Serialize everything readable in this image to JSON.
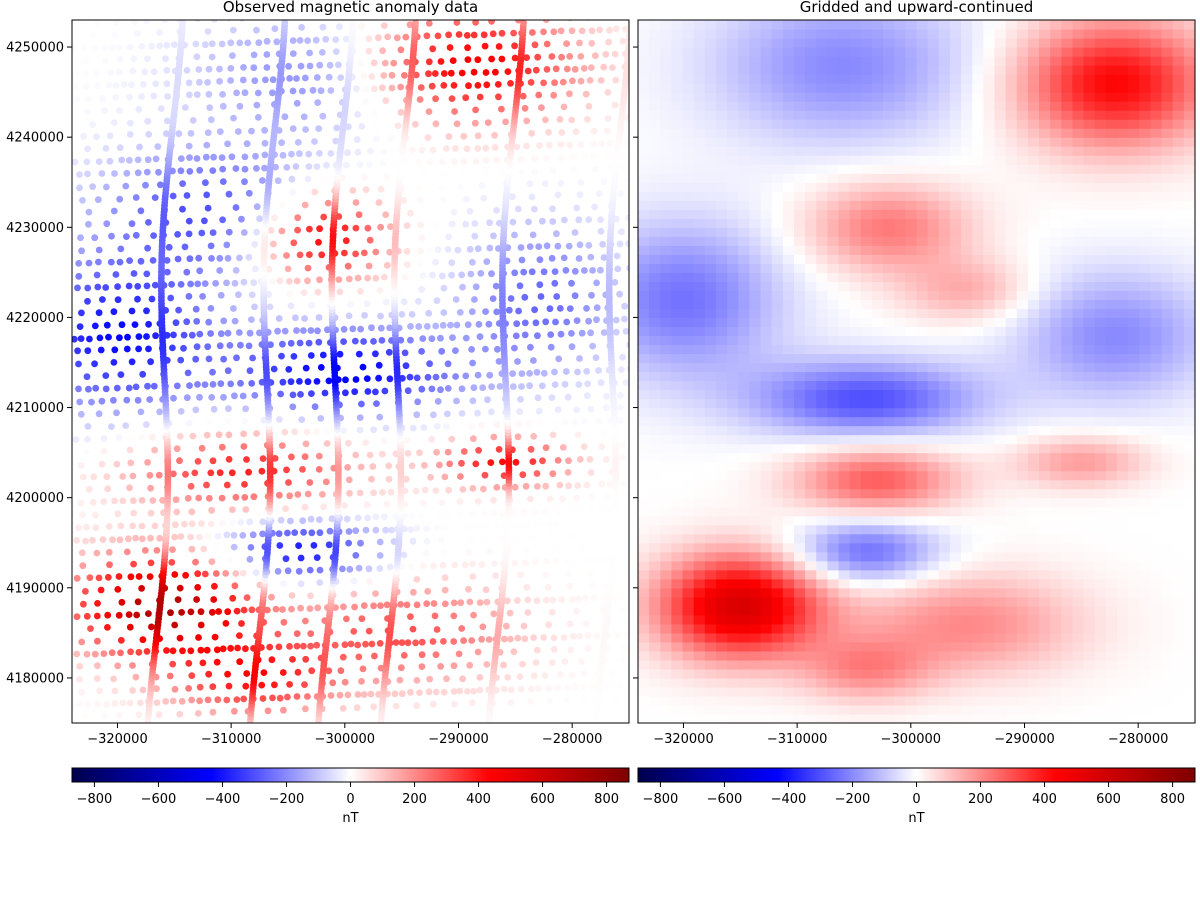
{
  "chart_data": [
    {
      "type": "scatter",
      "title": "Observed magnetic anomaly data",
      "xlabel": "",
      "ylabel": "",
      "xlim": [
        -324000,
        -275000
      ],
      "ylim": [
        4175000,
        4253000
      ],
      "x_ticks": [
        -320000,
        -310000,
        -300000,
        -290000,
        -280000
      ],
      "x_tick_labels": [
        "−320000",
        "−310000",
        "−300000",
        "−290000",
        "−280000"
      ],
      "y_ticks": [
        4180000,
        4190000,
        4200000,
        4210000,
        4220000,
        4230000,
        4240000,
        4250000
      ],
      "y_tick_labels": [
        "4180000",
        "4190000",
        "4200000",
        "4210000",
        "4220000",
        "4230000",
        "4240000",
        "4250000"
      ],
      "colormap": "seismic",
      "clim": [
        -870,
        870
      ],
      "grid": false,
      "flight_lines": {
        "east_west_spacing": 1400,
        "north_south_x": [
          -316800,
          -307800,
          -301800,
          -296300,
          -286800,
          -277400
        ]
      },
      "anomalies": [
        {
          "x": -303500,
          "y": 4247000,
          "sigma_x": 7000,
          "sigma_y": 5000,
          "value": -200
        },
        {
          "x": -289000,
          "y": 4248000,
          "sigma_x": 6500,
          "sigma_y": 4500,
          "value": 480
        },
        {
          "x": -312000,
          "y": 4232000,
          "sigma_x": 7000,
          "sigma_y": 5000,
          "value": -300
        },
        {
          "x": -302000,
          "y": 4229000,
          "sigma_x": 4000,
          "sigma_y": 3500,
          "value": 500
        },
        {
          "x": -320000,
          "y": 4218000,
          "sigma_x": 6000,
          "sigma_y": 6000,
          "value": -420
        },
        {
          "x": -300000,
          "y": 4214000,
          "sigma_x": 7000,
          "sigma_y": 3500,
          "value": -450
        },
        {
          "x": -283000,
          "y": 4222000,
          "sigma_x": 5000,
          "sigma_y": 6000,
          "value": -260
        },
        {
          "x": -309000,
          "y": 4203000,
          "sigma_x": 7000,
          "sigma_y": 3000,
          "value": 380
        },
        {
          "x": -286000,
          "y": 4204000,
          "sigma_x": 4000,
          "sigma_y": 2000,
          "value": 420
        },
        {
          "x": -304000,
          "y": 4194000,
          "sigma_x": 5000,
          "sigma_y": 2500,
          "value": -420
        },
        {
          "x": -316000,
          "y": 4188000,
          "sigma_x": 5500,
          "sigma_y": 4000,
          "value": 700
        },
        {
          "x": -295000,
          "y": 4185000,
          "sigma_x": 7000,
          "sigma_y": 4000,
          "value": 300
        },
        {
          "x": -308000,
          "y": 4180000,
          "sigma_x": 5000,
          "sigma_y": 3000,
          "value": 380
        }
      ]
    },
    {
      "type": "heatmap",
      "title": "Gridded and upward-continued",
      "xlabel": "",
      "ylabel": "",
      "xlim": [
        -324000,
        -275000
      ],
      "ylim": [
        4175000,
        4253000
      ],
      "x_ticks": [
        -320000,
        -310000,
        -300000,
        -290000,
        -280000
      ],
      "x_tick_labels": [
        "−320000",
        "−310000",
        "−300000",
        "−290000",
        "−280000"
      ],
      "colormap": "seismic",
      "clim": [
        -870,
        870
      ],
      "grid_cells": [
        50,
        78
      ],
      "anomalies": [
        {
          "x": -306000,
          "y": 4248000,
          "sigma_x": 8000,
          "sigma_y": 6000,
          "value": -200
        },
        {
          "x": -282000,
          "y": 4246000,
          "sigma_x": 6000,
          "sigma_y": 5000,
          "value": 430
        },
        {
          "x": -302000,
          "y": 4230000,
          "sigma_x": 5000,
          "sigma_y": 3500,
          "value": 230
        },
        {
          "x": -295000,
          "y": 4223000,
          "sigma_x": 4000,
          "sigma_y": 2500,
          "value": 140
        },
        {
          "x": -320000,
          "y": 4222000,
          "sigma_x": 6000,
          "sigma_y": 6000,
          "value": -240
        },
        {
          "x": -304000,
          "y": 4211000,
          "sigma_x": 7000,
          "sigma_y": 3000,
          "value": -300
        },
        {
          "x": -282000,
          "y": 4218000,
          "sigma_x": 6000,
          "sigma_y": 5000,
          "value": -200
        },
        {
          "x": -303000,
          "y": 4202000,
          "sigma_x": 5000,
          "sigma_y": 2600,
          "value": 280
        },
        {
          "x": -285000,
          "y": 4204000,
          "sigma_x": 4000,
          "sigma_y": 2000,
          "value": 170
        },
        {
          "x": -304000,
          "y": 4194000,
          "sigma_x": 4500,
          "sigma_y": 2500,
          "value": -260
        },
        {
          "x": -315000,
          "y": 4188000,
          "sigma_x": 5000,
          "sigma_y": 4000,
          "value": 560
        },
        {
          "x": -295000,
          "y": 4186000,
          "sigma_x": 7000,
          "sigma_y": 4000,
          "value": 200
        },
        {
          "x": -304000,
          "y": 4181000,
          "sigma_x": 4000,
          "sigma_y": 2500,
          "value": 180
        }
      ]
    }
  ],
  "colorbars": [
    {
      "label": "nT",
      "range": [
        -870,
        870
      ],
      "ticks": [
        -800,
        -600,
        -400,
        -200,
        0,
        200,
        400,
        600,
        800
      ],
      "tick_labels": [
        "−800",
        "−600",
        "−400",
        "−200",
        "0",
        "200",
        "400",
        "600",
        "800"
      ]
    },
    {
      "label": "nT",
      "range": [
        -870,
        870
      ],
      "ticks": [
        -800,
        -600,
        -400,
        -200,
        0,
        200,
        400,
        600,
        800
      ],
      "tick_labels": [
        "−800",
        "−600",
        "−400",
        "−200",
        "0",
        "200",
        "400",
        "600",
        "800"
      ]
    }
  ],
  "colors": {
    "cmap_stops": [
      "#00004c",
      "#0000ff",
      "#ffffff",
      "#ff0000",
      "#7f0000"
    ],
    "axis": "#000000",
    "background": "#ffffff"
  }
}
